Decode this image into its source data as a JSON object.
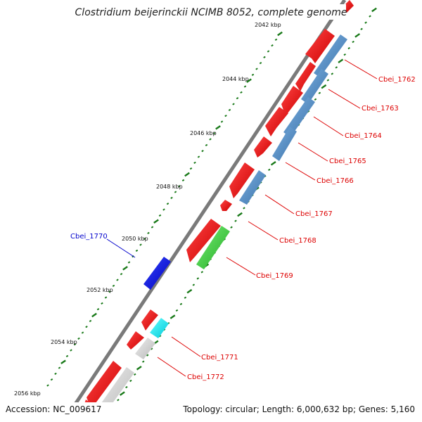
{
  "title": "Clostridium beijerinckii NCIMB 8052, complete genome",
  "footer": {
    "accession": "Accession: NC_009617",
    "summary": "Topology: circular; Length: 6,000,632 bp; Genes: 5,160"
  },
  "scale": {
    "tick_labels": [
      "2042 kbp",
      "2044 kbp",
      "2046 kbp",
      "2048 kbp",
      "2050 kbp",
      "2052 kbp",
      "2054 kbp",
      "2056 kbp"
    ]
  },
  "colors": {
    "backbone": "#7a7a7a",
    "tick": "#1a7a1a",
    "label_red": "#dd0000",
    "label_blue": "#0000cc",
    "gene_red": "#ee0000",
    "gene_steelblue": "#4a86c0",
    "gene_green": "#33cc33",
    "gene_blue": "#0000ee",
    "gene_cyan": "#00e5ee",
    "gene_gray": "#cccccc"
  },
  "genes": [
    {
      "name": "Cbei_1762",
      "label_color": "#dd0000"
    },
    {
      "name": "Cbei_1763",
      "label_color": "#dd0000"
    },
    {
      "name": "Cbei_1764",
      "label_color": "#dd0000"
    },
    {
      "name": "Cbei_1765",
      "label_color": "#dd0000"
    },
    {
      "name": "Cbei_1766",
      "label_color": "#dd0000"
    },
    {
      "name": "Cbei_1767",
      "label_color": "#dd0000"
    },
    {
      "name": "Cbei_1768",
      "label_color": "#dd0000"
    },
    {
      "name": "Cbei_1769",
      "label_color": "#dd0000"
    },
    {
      "name": "Cbei_1770",
      "label_color": "#0000cc"
    },
    {
      "name": "Cbei_1771",
      "label_color": "#dd0000"
    },
    {
      "name": "Cbei_1772",
      "label_color": "#dd0000"
    }
  ]
}
